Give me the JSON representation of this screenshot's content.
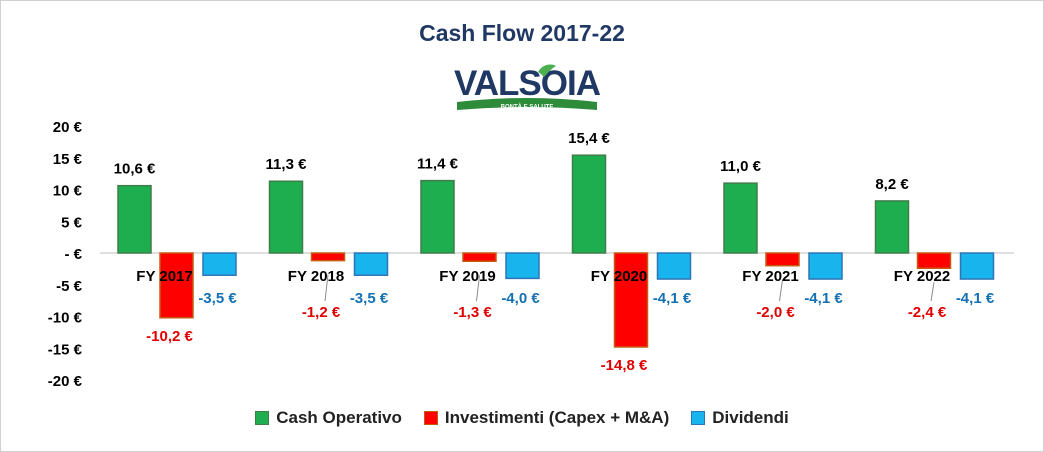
{
  "chart_data": {
    "type": "bar",
    "title": "Cash Flow 2017-22",
    "categories": [
      "FY 2017",
      "FY 2018",
      "FY 2019",
      "FY 2020",
      "FY 2021",
      "FY 2022"
    ],
    "series": [
      {
        "name": "Cash Operativo",
        "values": [
          10.6,
          11.3,
          11.4,
          15.4,
          11.0,
          8.2
        ],
        "labels": [
          "10,6 €",
          "11,3 €",
          "11,4 €",
          "15,4 €",
          "11,0 €",
          "8,2 €"
        ],
        "color": "#1fae4f",
        "border": "#3f7d4a",
        "label_color": "#000000"
      },
      {
        "name": "Investimenti (Capex + M&A)",
        "values": [
          -10.2,
          -1.2,
          -1.3,
          -14.8,
          -2.0,
          -2.4
        ],
        "labels": [
          "-10,2 €",
          "-1,2 €",
          "-1,3 €",
          "-14,8 €",
          "-2,0 €",
          "-2,4 €"
        ],
        "color": "#ff0000",
        "border": "#c55a11",
        "label_color": "#e00000"
      },
      {
        "name": "Dividendi",
        "values": [
          -3.5,
          -3.5,
          -4.0,
          -4.1,
          -4.1,
          -4.1
        ],
        "labels": [
          "-3,5 €",
          "-3,5 €",
          "-4,0 €",
          "-4,1 €",
          "-4,1 €",
          "-4,1 €"
        ],
        "color": "#17b4ee",
        "border": "#2e75b6",
        "label_color": "#1270b3"
      }
    ],
    "ylim": [
      -20,
      20
    ],
    "yticks": [
      20,
      15,
      10,
      5,
      0,
      -5,
      -10,
      -15,
      -20
    ],
    "ytick_labels": [
      "20 €",
      "15 €",
      "10 €",
      "5 €",
      "- €",
      "-5 €",
      "-10 €",
      "-15 €",
      "-20 €"
    ],
    "legend": "bottom",
    "grid": false
  },
  "logo": {
    "text": "VALSOIA",
    "tagline": "BONTÀ E SALUTE"
  },
  "colors": {
    "title": "#1f3864",
    "logo_text": "#1f3864",
    "logo_leaf": "#4caf50",
    "logo_arc": "#2e8b3a",
    "axis": "#bfbfbf"
  }
}
